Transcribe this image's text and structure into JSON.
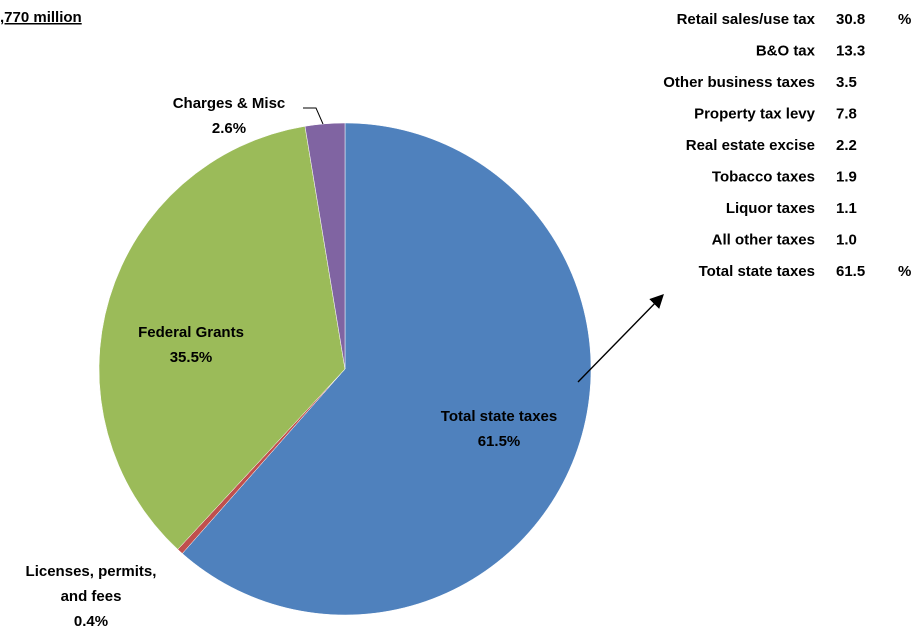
{
  "chart_data": {
    "type": "pie",
    "title": ",770 million",
    "slices": [
      {
        "label": "Total state taxes",
        "value": 61.5,
        "display": "61.5%",
        "color": "#4F81BD"
      },
      {
        "label": "Licenses, permits,\nand fees",
        "value": 0.4,
        "display": "0.4%",
        "color": "#C0504D"
      },
      {
        "label": "Federal Grants",
        "value": 35.5,
        "display": "35.5%",
        "color": "#9BBB59"
      },
      {
        "label": "Charges & Misc",
        "value": 2.6,
        "display": "2.6%",
        "color": "#8064A2"
      }
    ],
    "breakdown": {
      "parent": "Total state taxes",
      "rows": [
        {
          "label": "Retail sales/use tax",
          "value": "30.8",
          "unit": "%"
        },
        {
          "label": "B&O tax",
          "value": "13.3",
          "unit": ""
        },
        {
          "label": "Other business taxes",
          "value": "3.5",
          "unit": ""
        },
        {
          "label": "Property tax levy",
          "value": "7.8",
          "unit": ""
        },
        {
          "label": "Real estate excise",
          "value": "2.2",
          "unit": ""
        },
        {
          "label": "Tobacco taxes",
          "value": "1.9",
          "unit": ""
        },
        {
          "label": "Liquor taxes",
          "value": "1.1",
          "unit": ""
        },
        {
          "label": "All other taxes",
          "value": "1.0",
          "unit": ""
        },
        {
          "label": "Total state taxes",
          "value": "61.5",
          "unit": "%"
        }
      ]
    },
    "legend": "none"
  }
}
